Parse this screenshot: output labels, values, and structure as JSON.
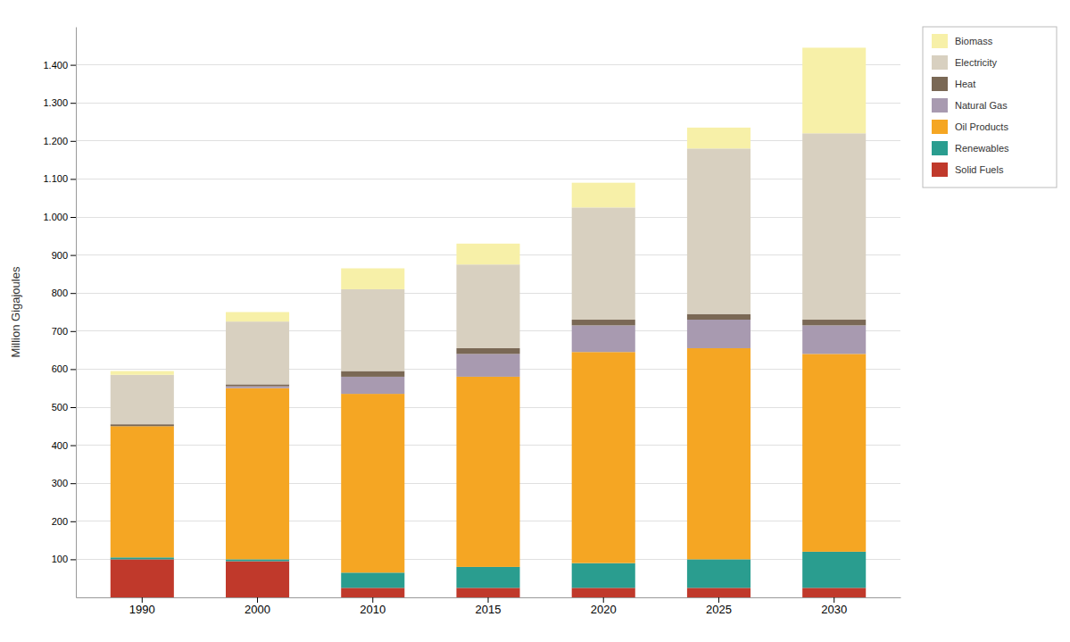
{
  "chart_data": {
    "type": "bar",
    "stacked": true,
    "ylabel": "Million Gigajoules",
    "categories": [
      "1990",
      "2000",
      "2010",
      "2015",
      "2020",
      "2025",
      "2030"
    ],
    "series": [
      {
        "name": "Solid Fuels",
        "color": "#c0392b",
        "values": [
          100,
          95,
          25,
          25,
          25,
          25,
          25
        ]
      },
      {
        "name": "Renewables",
        "color": "#2a9d8f",
        "values": [
          5,
          5,
          40,
          55,
          65,
          75,
          95
        ]
      },
      {
        "name": "Oil Products",
        "color": "#f5a623",
        "values": [
          345,
          450,
          470,
          500,
          555,
          555,
          520
        ]
      },
      {
        "name": "Natural Gas",
        "color": "#a89ab0",
        "values": [
          0,
          5,
          45,
          60,
          70,
          75,
          75
        ]
      },
      {
        "name": "Heat",
        "color": "#7a6855",
        "values": [
          5,
          5,
          15,
          15,
          15,
          15,
          15
        ]
      },
      {
        "name": "Electricity",
        "color": "#d8d0c0",
        "values": [
          130,
          165,
          215,
          220,
          295,
          435,
          490
        ]
      },
      {
        "name": "Biomass",
        "color": "#f7f0a8",
        "values": [
          10,
          25,
          55,
          55,
          65,
          55,
          225
        ]
      }
    ],
    "ylim": [
      0,
      1500
    ],
    "yticks": [
      100,
      200,
      300,
      400,
      500,
      600,
      700,
      800,
      900,
      {
        "value": 1000,
        "label": "1.000"
      },
      {
        "value": 1100,
        "label": "1.100"
      },
      {
        "value": 1200,
        "label": "1.200"
      },
      {
        "value": 1300,
        "label": "1.300"
      },
      {
        "value": 1400,
        "label": "1.400"
      }
    ],
    "grid": true,
    "legend": "right"
  }
}
